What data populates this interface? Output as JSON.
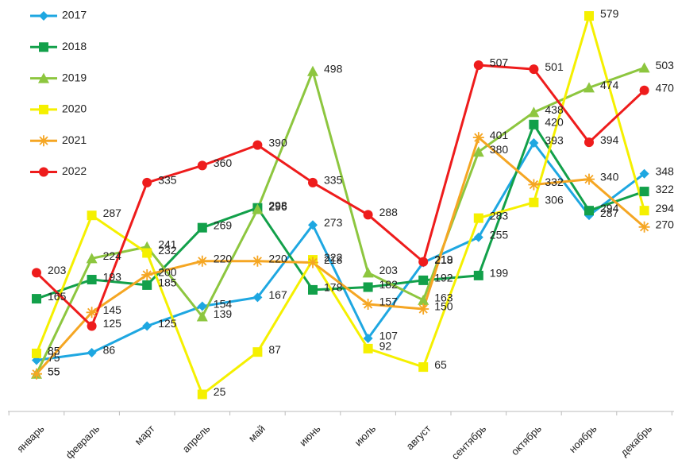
{
  "chart_data": {
    "type": "line",
    "categories": [
      "январь",
      "февраль",
      "март",
      "апрель",
      "май",
      "июнь",
      "июль",
      "август",
      "сентябрь",
      "октябрь",
      "ноябрь",
      "декабрь"
    ],
    "series": [
      {
        "name": "2017",
        "color": "#1ea7e1",
        "marker": "diamond",
        "values": [
          75,
          86,
          125,
          154,
          167,
          273,
          107,
          218,
          255,
          393,
          287,
          348
        ]
      },
      {
        "name": "2018",
        "color": "#12a04a",
        "marker": "square",
        "values": [
          165,
          193,
          185,
          269,
          298,
          178,
          182,
          192,
          199,
          420,
          294,
          322
        ]
      },
      {
        "name": "2019",
        "color": "#8dc63f",
        "marker": "triangle",
        "values": [
          55,
          224,
          241,
          139,
          296,
          498,
          203,
          163,
          380,
          438,
          474,
          503
        ]
      },
      {
        "name": "2020",
        "color": "#f5f000",
        "marker": "square",
        "values": [
          85,
          287,
          232,
          25,
          87,
          222,
          92,
          65,
          283,
          306,
          579,
          294
        ]
      },
      {
        "name": "2021",
        "color": "#f5a623",
        "marker": "star",
        "values": [
          55,
          145,
          200,
          220,
          220,
          218,
          157,
          150,
          401,
          332,
          340,
          270
        ]
      },
      {
        "name": "2022",
        "color": "#ee1c1c",
        "marker": "circle",
        "values": [
          203,
          125,
          335,
          360,
          390,
          335,
          288,
          219,
          507,
          501,
          394,
          470
        ]
      }
    ],
    "ylim": [
      0,
      600
    ],
    "legend": "upper left"
  }
}
